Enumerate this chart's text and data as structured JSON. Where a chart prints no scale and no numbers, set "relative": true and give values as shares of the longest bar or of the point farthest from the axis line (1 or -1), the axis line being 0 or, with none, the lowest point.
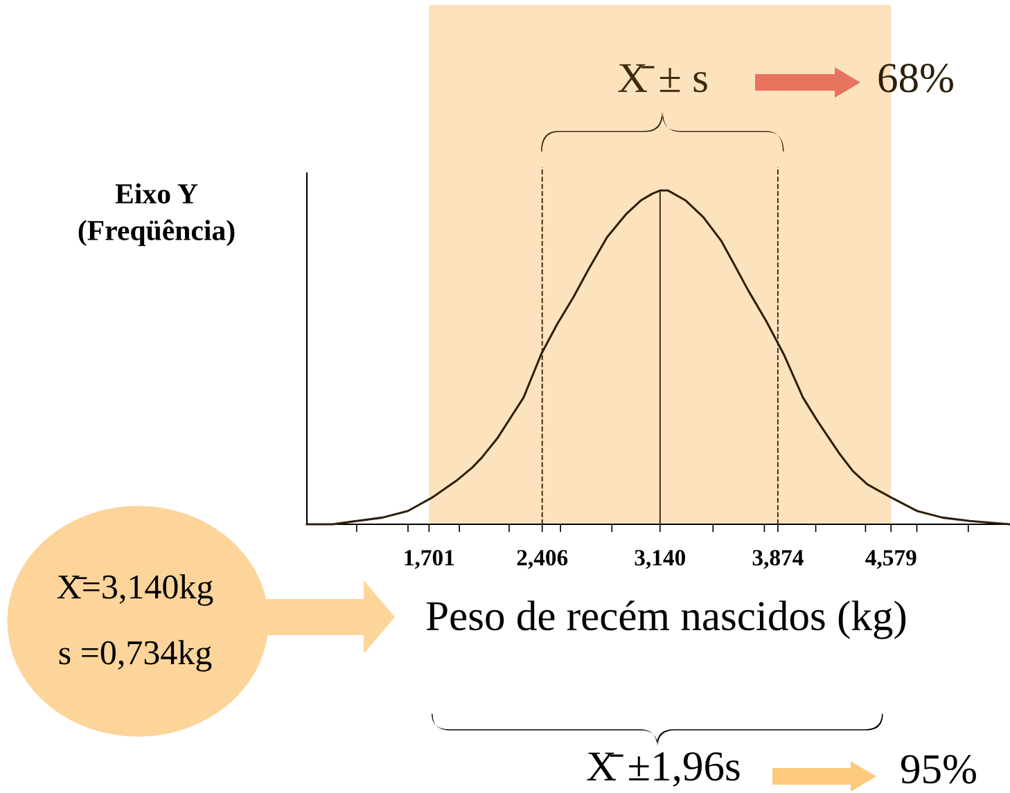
{
  "chart_data": {
    "type": "line",
    "relative": true,
    "xlabel": "Peso de recém nascidos (kg)",
    "ylabel": "Eixo Y\n(Freqüência)",
    "x": [
      0.94,
      1.1,
      1.25,
      1.41,
      1.57,
      1.72,
      1.87,
      1.97,
      2.03,
      2.13,
      2.21,
      2.29,
      2.4,
      2.5,
      2.6,
      2.69,
      2.81,
      2.93,
      3.02,
      3.09,
      3.14,
      3.19,
      3.3,
      3.41,
      3.52,
      3.6,
      3.69,
      3.8,
      3.91,
      4.03,
      4.12,
      4.26,
      4.34,
      4.43,
      4.58,
      4.74,
      4.9,
      5.07,
      5.32
    ],
    "series": [
      {
        "color": "#2e1f0a",
        "values": [
          0.0,
          0.0,
          0.01,
          0.02,
          0.04,
          0.08,
          0.13,
          0.17,
          0.2,
          0.26,
          0.32,
          0.38,
          0.51,
          0.6,
          0.68,
          0.76,
          0.86,
          0.93,
          0.97,
          0.99,
          1.0,
          1.0,
          0.97,
          0.92,
          0.85,
          0.78,
          0.7,
          0.61,
          0.51,
          0.38,
          0.31,
          0.21,
          0.16,
          0.12,
          0.08,
          0.04,
          0.02,
          0.01,
          0.0
        ]
      }
    ],
    "xlim": [
      0.94,
      5.32
    ],
    "xticks": [
      {
        "value": 1.25,
        "label": null
      },
      {
        "value": 1.57,
        "label": null
      },
      {
        "value": 1.701,
        "label": "1,701"
      },
      {
        "value": 1.89,
        "label": null
      },
      {
        "value": 2.2,
        "label": null
      },
      {
        "value": 2.406,
        "label": "2,406"
      },
      {
        "value": 2.52,
        "label": null
      },
      {
        "value": 2.84,
        "label": null
      },
      {
        "value": 3.14,
        "label": "3,140"
      },
      {
        "value": 3.47,
        "label": null
      },
      {
        "value": 3.79,
        "label": null
      },
      {
        "value": 3.874,
        "label": "3,874"
      },
      {
        "value": 4.11,
        "label": null
      },
      {
        "value": 4.42,
        "label": null
      },
      {
        "value": 4.579,
        "label": "4,579"
      },
      {
        "value": 4.74,
        "label": null
      },
      {
        "value": 5.06,
        "label": null
      }
    ],
    "tick_labels": "x",
    "grid": false,
    "marker": "none",
    "line_style": "solid",
    "ref_lines": [
      {
        "axis": "x",
        "value": 2.406,
        "color": "#3d2a10",
        "line_style": "dashed"
      },
      {
        "axis": "x",
        "value": 3.14,
        "color": "#3d2a10",
        "line_style": "solid"
      },
      {
        "axis": "x",
        "value": 3.874,
        "color": "#3d2a10",
        "line_style": "dashed"
      }
    ],
    "bands": [
      {
        "axis": "x",
        "from": 1.701,
        "to": 4.579,
        "color": "#fde3bd"
      }
    ],
    "annotations": [
      "X̄ ± s",
      "68%",
      "X̄ ±1,96s",
      "95%",
      "X̄=3,140kg",
      "s =0,734kg"
    ]
  }
}
